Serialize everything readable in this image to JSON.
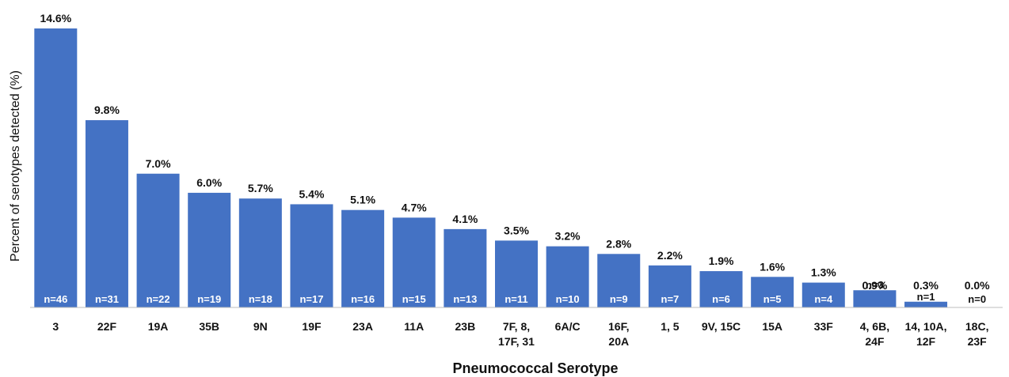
{
  "chart_data": {
    "type": "bar",
    "categories": [
      [
        "3"
      ],
      [
        "22F"
      ],
      [
        "19A"
      ],
      [
        "35B"
      ],
      [
        "9N"
      ],
      [
        "19F"
      ],
      [
        "23A"
      ],
      [
        "11A"
      ],
      [
        "23B"
      ],
      [
        "7F, 8,",
        "17F, 31"
      ],
      [
        "6A/C"
      ],
      [
        "16F,",
        "20A"
      ],
      [
        "1, 5"
      ],
      [
        "9V, 15C"
      ],
      [
        "15A"
      ],
      [
        "33F"
      ],
      [
        "4, 6B,",
        "24F"
      ],
      [
        "14, 10A,",
        "12F"
      ],
      [
        "18C,",
        "23F"
      ]
    ],
    "values": [
      14.6,
      9.8,
      7.0,
      6.0,
      5.7,
      5.4,
      5.1,
      4.7,
      4.1,
      3.5,
      3.2,
      2.8,
      2.2,
      1.9,
      1.6,
      1.3,
      0.9,
      0.3,
      0.0
    ],
    "value_labels": [
      "14.6%",
      "9.8%",
      "7.0%",
      "6.0%",
      "5.7%",
      "5.4%",
      "5.1%",
      "4.7%",
      "4.1%",
      "3.5%",
      "3.2%",
      "2.8%",
      "2.2%",
      "1.9%",
      "1.6%",
      "1.3%",
      "0.9%",
      "0.3%",
      "0.0%"
    ],
    "counts": [
      "n=46",
      "n=31",
      "n=22",
      "n=19",
      "n=18",
      "n=17",
      "n=16",
      "n=15",
      "n=13",
      "n=11",
      "n=10",
      "n=9",
      "n=7",
      "n=6",
      "n=5",
      "n=4",
      "n=3",
      "n=1",
      "n=0"
    ],
    "xlabel": "Pneumococcal Serotype",
    "ylabel": "Percent of serotypes detected (%)",
    "ylim": [
      0,
      14.6
    ],
    "grid": false,
    "bar_color": "#4472C4"
  }
}
